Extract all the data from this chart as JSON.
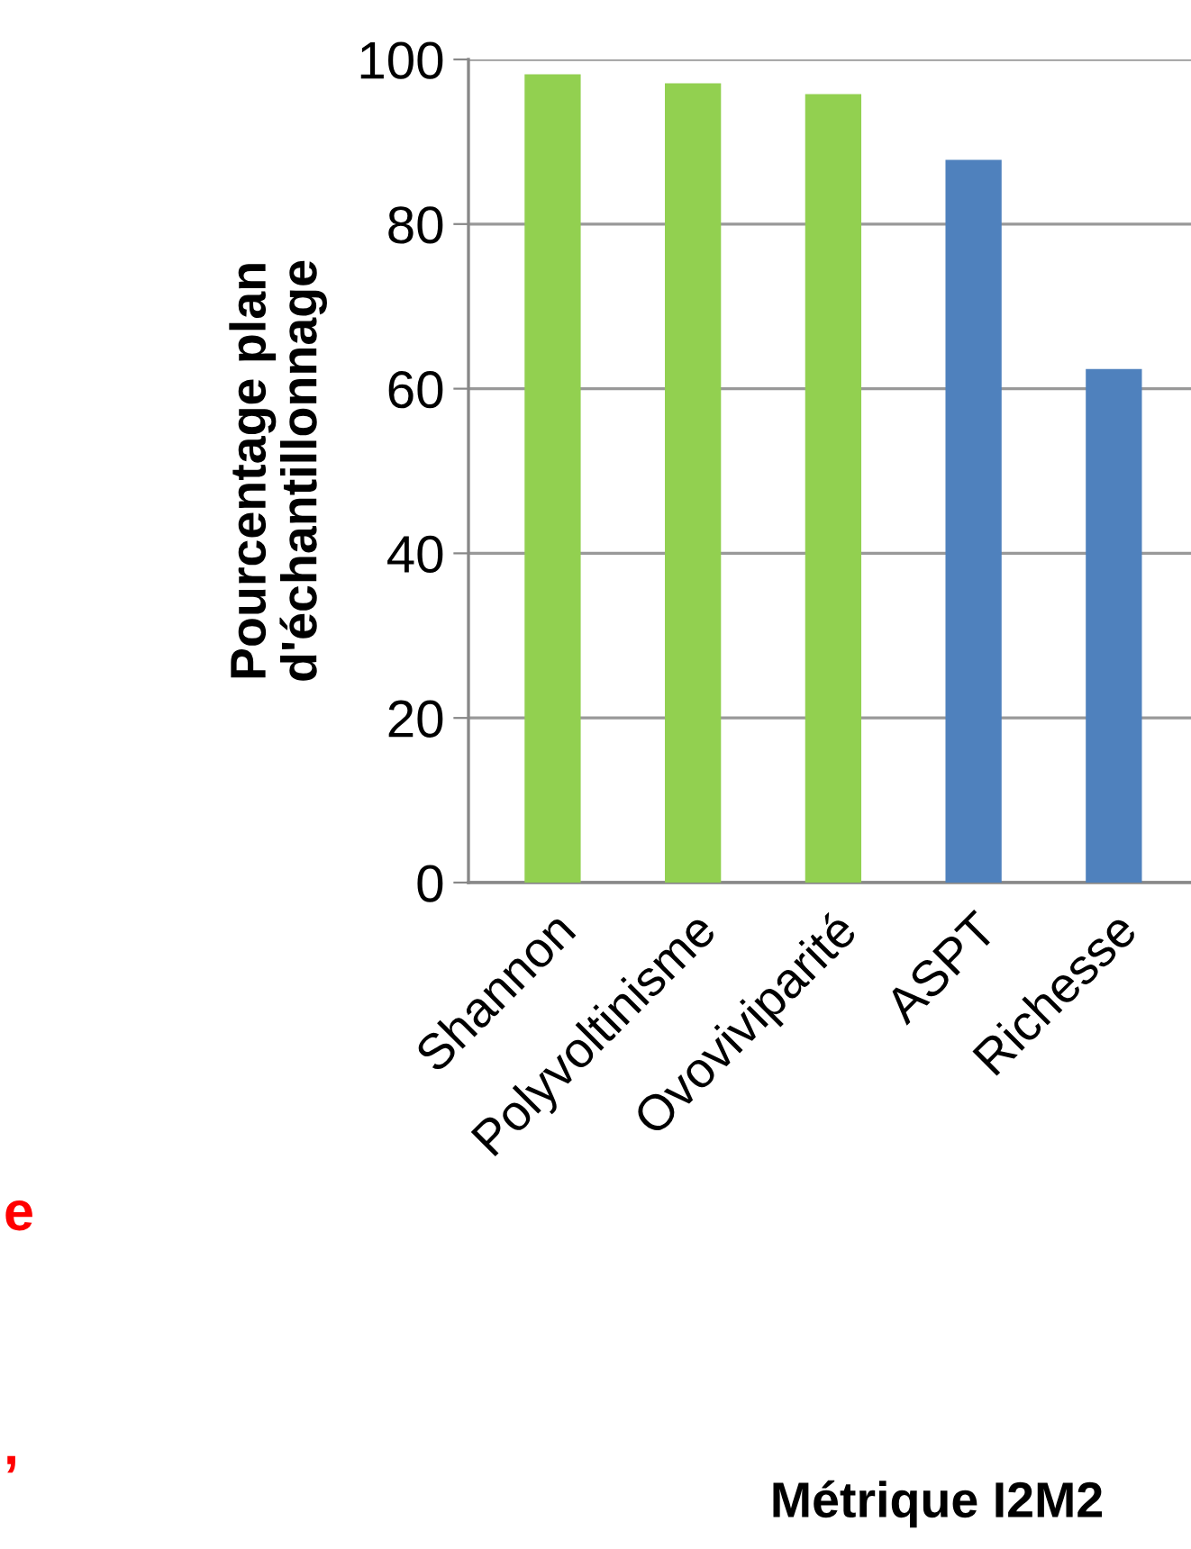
{
  "chart_data": {
    "type": "bar",
    "categories": [
      "Shannon",
      "Polyvoltinisme",
      "Ovoviviparité",
      "ASPT",
      "Richesse"
    ],
    "values": [
      98.2,
      97.1,
      95.8,
      87.8,
      62.4
    ],
    "colors": [
      "#92d050",
      "#92d050",
      "#92d050",
      "#4f81bd",
      "#4f81bd"
    ],
    "ylabel": "Pourcentage plan\nd'échantillonnage",
    "ylim": [
      0,
      100
    ],
    "yticks": [
      0,
      20,
      40,
      60,
      80,
      100
    ],
    "grid": "y",
    "annotations": [
      "e",
      ",",
      "Métrique I2M2"
    ]
  }
}
